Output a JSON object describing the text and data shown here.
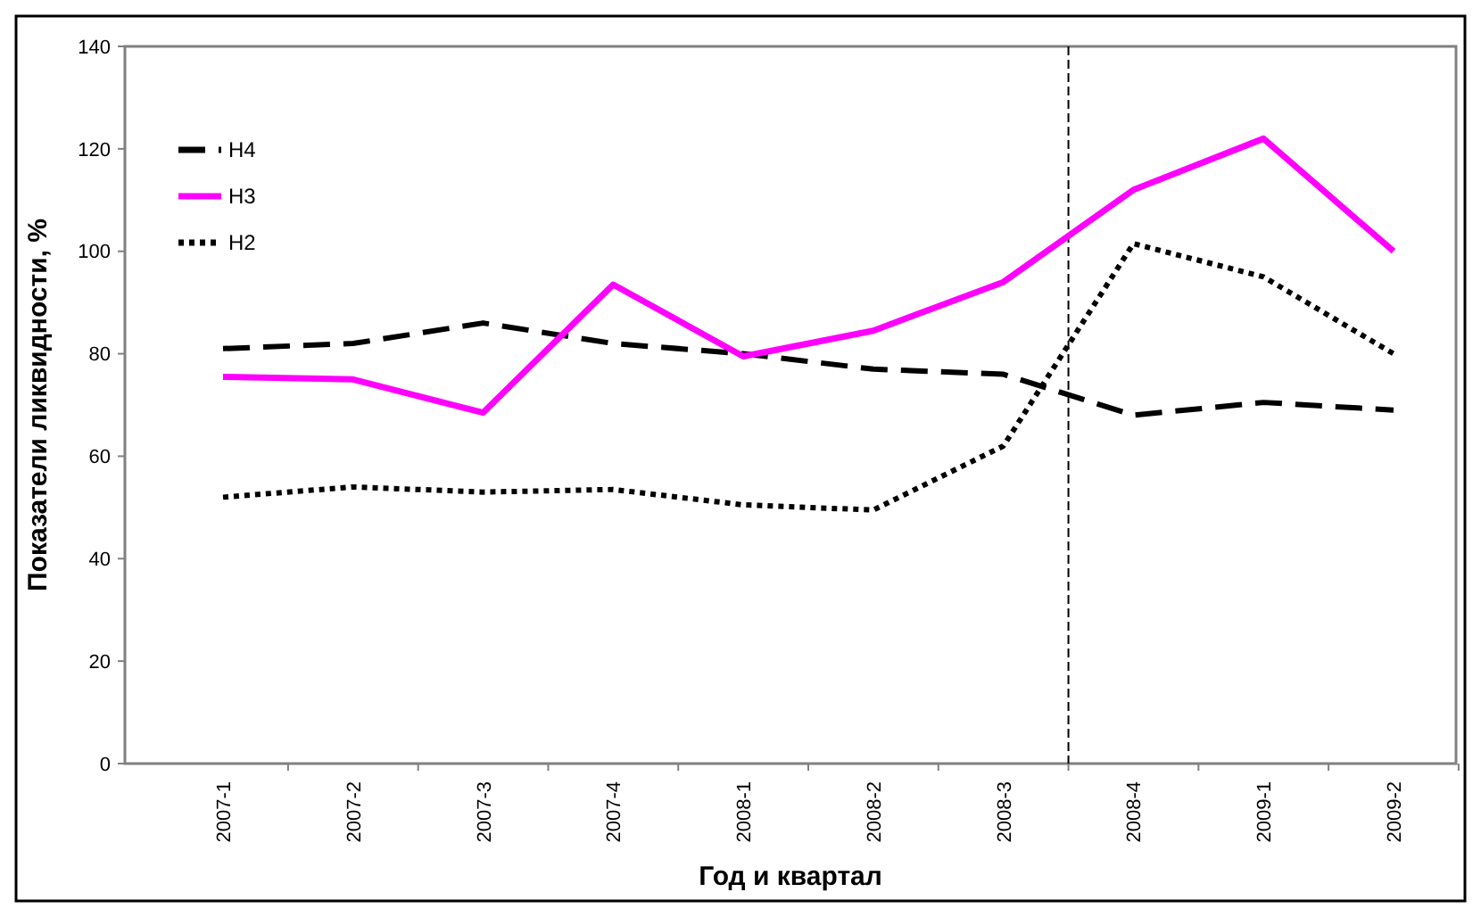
{
  "chart_data": {
    "type": "line",
    "xlabel": "Год и квартал",
    "ylabel": "Показатели ликвидности, %",
    "categories": [
      "2007-1",
      "2007-2",
      "2007-3",
      "2007-4",
      "2008-1",
      "2008-2",
      "2008-3",
      "2008-4",
      "2009-1",
      "2009-2"
    ],
    "series": [
      {
        "name": "Н4",
        "color": "#000000",
        "line_style": "dashed",
        "values": [
          81,
          82,
          86,
          82,
          80,
          77,
          76,
          68,
          70.5,
          69
        ]
      },
      {
        "name": "Н3",
        "color": "#ff00ff",
        "line_style": "solid",
        "values": [
          75.5,
          75,
          68.5,
          93.5,
          79.5,
          84.5,
          94,
          112,
          122,
          100
        ]
      },
      {
        "name": "Н2",
        "color": "#000000",
        "line_style": "dotted",
        "values": [
          52,
          54,
          53,
          53.5,
          50.5,
          49.5,
          62,
          101.5,
          95,
          80
        ]
      }
    ],
    "ylim": [
      0,
      140
    ],
    "yticks": [
      0,
      20,
      40,
      60,
      80,
      100,
      120,
      140
    ],
    "grid": false,
    "legend": "top left",
    "marker": "none"
  }
}
